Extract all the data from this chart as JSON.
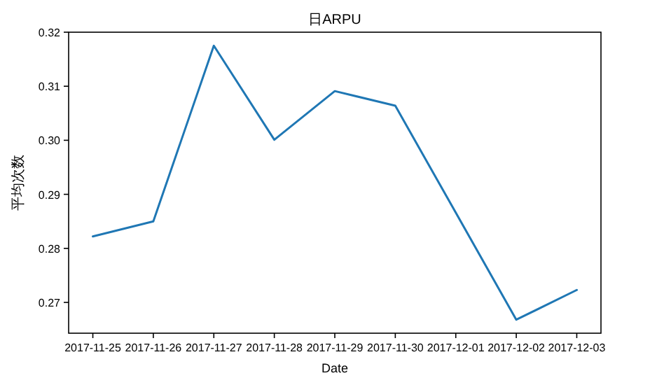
{
  "chart_data": {
    "type": "line",
    "title": "日ARPU",
    "xlabel": "Date",
    "ylabel": "平均次数",
    "x": [
      "2017-11-25",
      "2017-11-26",
      "2017-11-27",
      "2017-11-28",
      "2017-11-29",
      "2017-11-30",
      "2017-12-01",
      "2017-12-02",
      "2017-12-03"
    ],
    "series": [
      {
        "color": "#1f77b4",
        "values": [
          0.2822,
          0.285,
          0.3175,
          0.3001,
          0.3091,
          0.3064,
          0.2866,
          0.2668,
          0.2723
        ]
      }
    ],
    "xlim": [
      "2017-11-24T14:24",
      "2017-12-03T09:36"
    ],
    "xticks": [
      "2017-11-25",
      "2017-11-26",
      "2017-11-27",
      "2017-11-28",
      "2017-11-29",
      "2017-11-30",
      "2017-12-01",
      "2017-12-02",
      "2017-12-03"
    ],
    "ylim": [
      0.2643,
      0.32
    ],
    "yticks": [
      0.27,
      0.28,
      0.29,
      {
        "value": 0.3,
        "label": "0.30"
      },
      0.31,
      0.32
    ],
    "grid": false,
    "marker": "none",
    "line_style": "solid"
  }
}
